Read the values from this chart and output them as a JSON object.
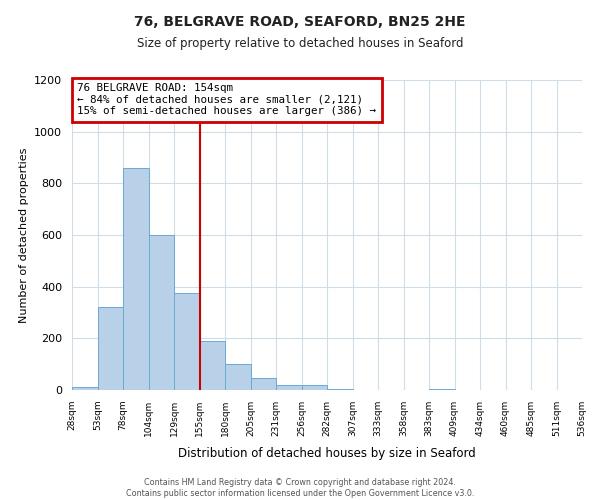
{
  "title": "76, BELGRAVE ROAD, SEAFORD, BN25 2HE",
  "subtitle": "Size of property relative to detached houses in Seaford",
  "xlabel": "Distribution of detached houses by size in Seaford",
  "ylabel": "Number of detached properties",
  "bar_values": [
    10,
    320,
    860,
    600,
    375,
    190,
    100,
    47,
    20,
    18,
    5,
    0,
    0,
    0,
    5,
    0,
    0,
    0,
    0,
    0
  ],
  "bin_labels": [
    "28sqm",
    "53sqm",
    "78sqm",
    "104sqm",
    "129sqm",
    "155sqm",
    "180sqm",
    "205sqm",
    "231sqm",
    "256sqm",
    "282sqm",
    "307sqm",
    "333sqm",
    "358sqm",
    "383sqm",
    "409sqm",
    "434sqm",
    "460sqm",
    "485sqm",
    "511sqm",
    "536sqm"
  ],
  "bar_color": "#b8d0e8",
  "bar_edgecolor": "#6aaad4",
  "ylim": [
    0,
    1200
  ],
  "yticks": [
    0,
    200,
    400,
    600,
    800,
    1000,
    1200
  ],
  "vline_x": 5,
  "vline_color": "#cc0000",
  "annotation_title": "76 BELGRAVE ROAD: 154sqm",
  "annotation_line1": "← 84% of detached houses are smaller (2,121)",
  "annotation_line2": "15% of semi-detached houses are larger (386) →",
  "annotation_box_color": "#cc0000",
  "footer_line1": "Contains HM Land Registry data © Crown copyright and database right 2024.",
  "footer_line2": "Contains public sector information licensed under the Open Government Licence v3.0.",
  "bg_color": "#ffffff",
  "grid_color": "#d0dce8"
}
